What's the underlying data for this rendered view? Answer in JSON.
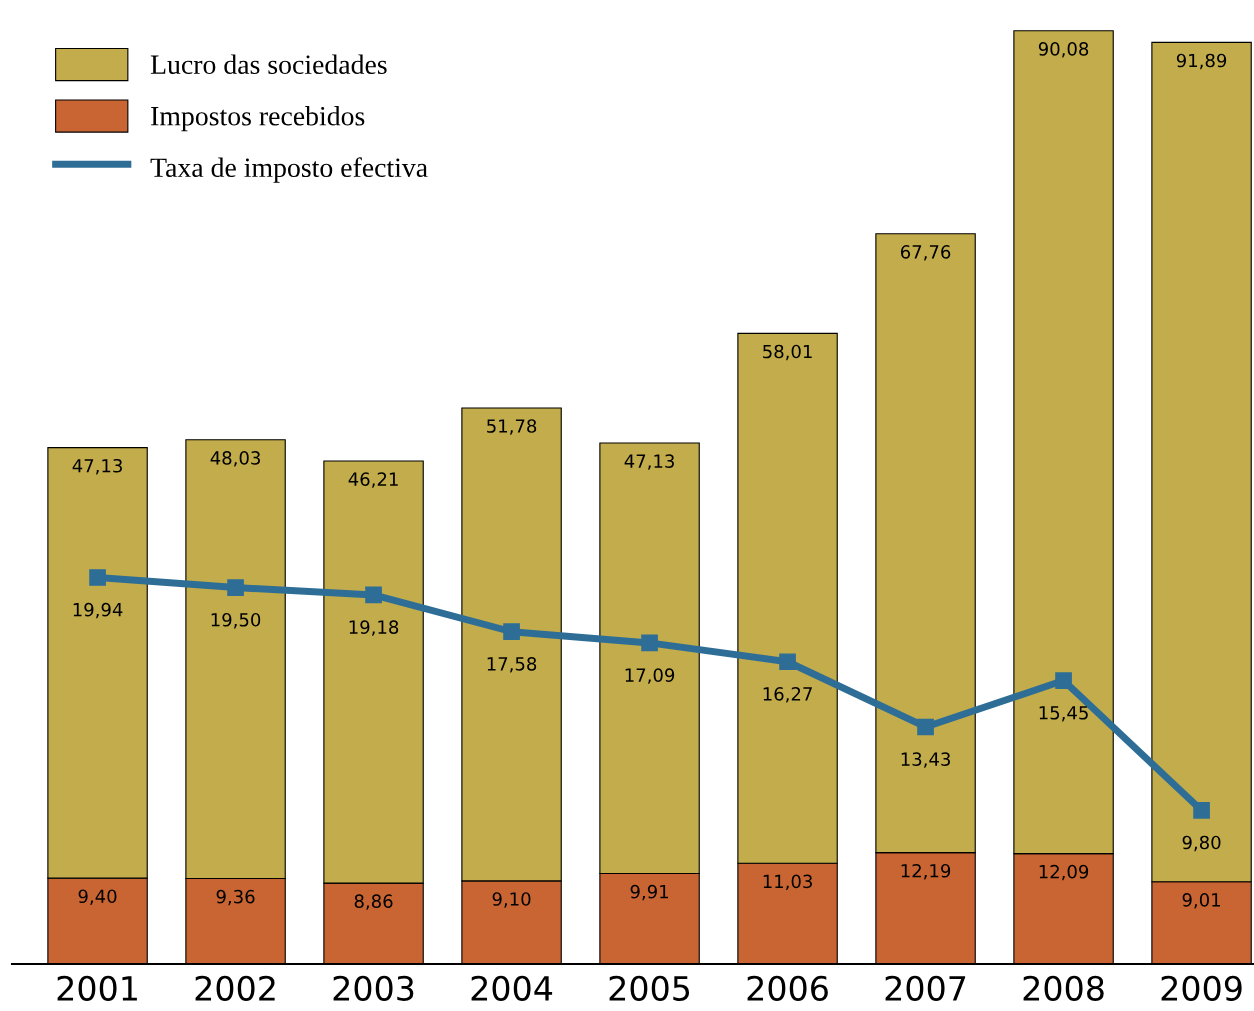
{
  "chart_data": {
    "type": "bar",
    "stacked": true,
    "categories": [
      "2001",
      "2002",
      "2003",
      "2004",
      "2005",
      "2006",
      "2007",
      "2008",
      "2009"
    ],
    "series": [
      {
        "name": "Impostos recebidos",
        "color": "#c96532",
        "values": [
          9.4,
          9.36,
          8.86,
          9.1,
          9.91,
          11.03,
          12.19,
          12.09,
          9.01
        ],
        "value_labels": [
          "9,40",
          "9,36",
          "8,86",
          "9,10",
          "9,91",
          "11,03",
          "12,19",
          "12,09",
          "9,01"
        ]
      },
      {
        "name": "Lucro das sociedades",
        "color": "#c2ac4b",
        "values": [
          47.13,
          48.03,
          46.21,
          51.78,
          47.13,
          58.01,
          67.76,
          90.08,
          91.89
        ],
        "value_labels": [
          "47,13",
          "48,03",
          "46,21",
          "51,78",
          "47,13",
          "58,01",
          "67,76",
          "90,08",
          "91,89"
        ]
      },
      {
        "name": "Taxa de imposto efectiva",
        "type": "line",
        "axis": "y2",
        "color": "#2e6e96",
        "marker": "square",
        "line_style": "solid",
        "values": [
          19.94,
          19.5,
          19.18,
          17.58,
          17.09,
          16.27,
          13.43,
          15.45,
          9.8
        ],
        "value_labels": [
          "19,94",
          "19,50",
          "19,18",
          "17,58",
          "17,09",
          "16,27",
          "13,43",
          "15,45",
          "9,80"
        ]
      }
    ],
    "tick_labels": "x",
    "legend": "top left",
    "grid": false
  }
}
